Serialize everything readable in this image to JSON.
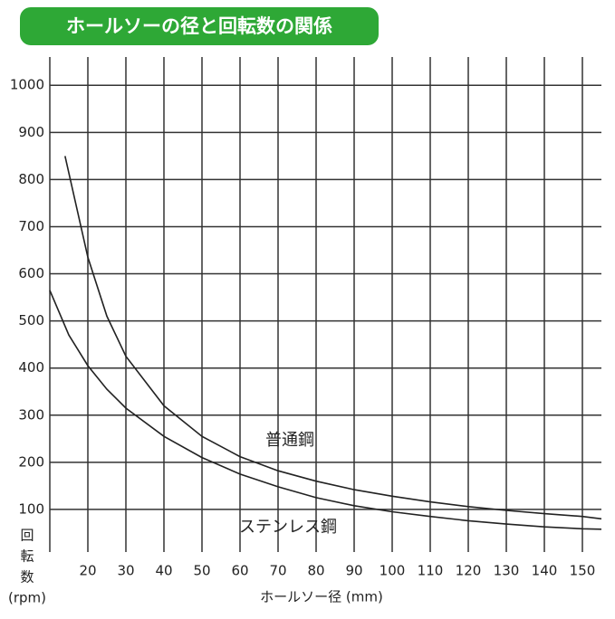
{
  "chart_data": {
    "type": "line",
    "title": "ホールソーの径と回転数の関係",
    "x_label": "ホールソー径 (mm)",
    "y_label": [
      "回",
      "転",
      "数",
      "(rpm)"
    ],
    "xlim": [
      10,
      155
    ],
    "ylim": [
      0,
      1060
    ],
    "xticks": [
      20,
      30,
      40,
      50,
      60,
      70,
      80,
      90,
      100,
      110,
      120,
      130,
      140,
      150
    ],
    "yticks": [
      100,
      200,
      300,
      400,
      500,
      600,
      700,
      800,
      900,
      1000
    ],
    "grid": true,
    "series": [
      {
        "name": "普通鋼",
        "color": "#222222",
        "x": [
          14,
          20,
          25,
          30,
          40,
          50,
          60,
          70,
          80,
          90,
          100,
          110,
          120,
          130,
          140,
          150,
          155
        ],
        "values": [
          850,
          635,
          510,
          425,
          320,
          255,
          212,
          182,
          160,
          142,
          128,
          116,
          106,
          98,
          91,
          85,
          80
        ]
      },
      {
        "name": "ステンレス鋼",
        "color": "#222222",
        "x": [
          10,
          15,
          20,
          25,
          30,
          40,
          50,
          60,
          70,
          80,
          90,
          100,
          110,
          120,
          130,
          140,
          150,
          155
        ],
        "values": [
          565,
          470,
          405,
          355,
          315,
          255,
          210,
          175,
          148,
          125,
          108,
          95,
          85,
          76,
          69,
          63,
          59,
          58
        ]
      }
    ]
  }
}
